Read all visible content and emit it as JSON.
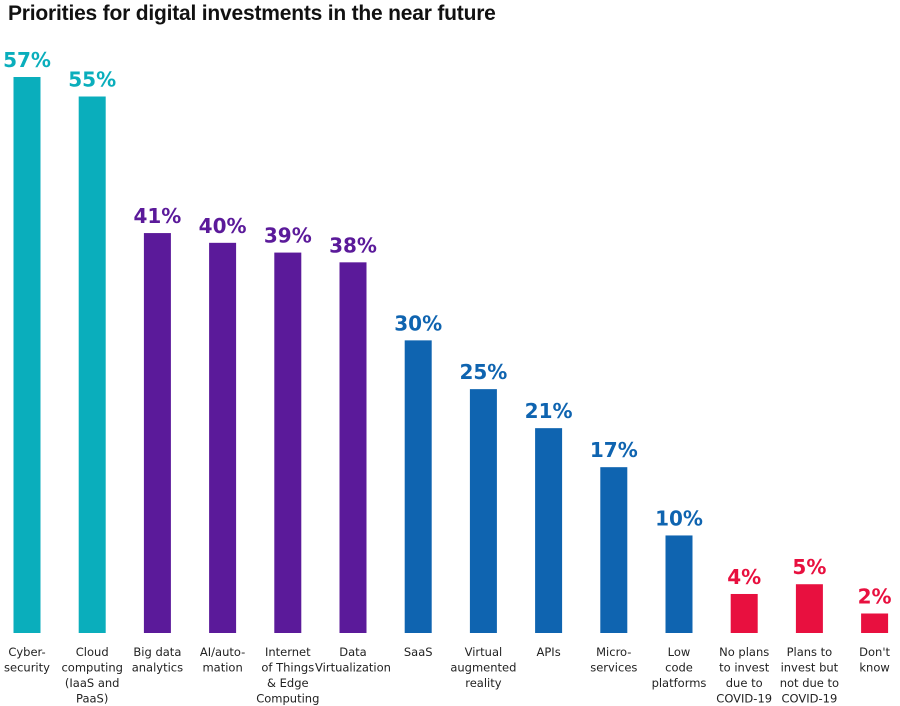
{
  "chart_data": {
    "type": "bar",
    "title": "Priorities for digital investments in the near future",
    "xlabel": "",
    "ylabel": "",
    "ylim": [
      0,
      57
    ],
    "grid": false,
    "legend": "none",
    "value_suffix": "%",
    "categories": [
      [
        "Cyber-",
        "security"
      ],
      [
        "Cloud",
        "computing",
        "(IaaS and",
        "PaaS)"
      ],
      [
        "Big data",
        "analytics"
      ],
      [
        "AI/auto-",
        "mation"
      ],
      [
        "Internet",
        "of Things",
        "& Edge",
        "Computing"
      ],
      [
        "Data",
        "Virtualization"
      ],
      [
        "SaaS"
      ],
      [
        "Virtual",
        "augmented",
        "reality"
      ],
      [
        "APIs"
      ],
      [
        "Micro-",
        "services"
      ],
      [
        "Low",
        "code",
        "platforms"
      ],
      [
        "No plans",
        "to invest",
        "due to",
        "COVID-19"
      ],
      [
        "Plans to",
        "invest but",
        "not due to",
        "COVID-19"
      ],
      [
        "Don't",
        "know"
      ]
    ],
    "values": [
      57,
      55,
      41,
      40,
      39,
      38,
      30,
      25,
      21,
      17,
      10,
      4,
      5,
      2
    ],
    "labels": [
      "57%",
      "55%",
      "41%",
      "40%",
      "39%",
      "38%",
      "30%",
      "25%",
      "21%",
      "17%",
      "10%",
      "4%",
      "5%",
      "2%"
    ],
    "colors": [
      "#0aaebc",
      "#0aaebc",
      "#5b1a9a",
      "#5b1a9a",
      "#5b1a9a",
      "#5b1a9a",
      "#0f64b0",
      "#0f64b0",
      "#0f64b0",
      "#0f64b0",
      "#0f64b0",
      "#e8103f",
      "#e8103f",
      "#e8103f"
    ]
  }
}
